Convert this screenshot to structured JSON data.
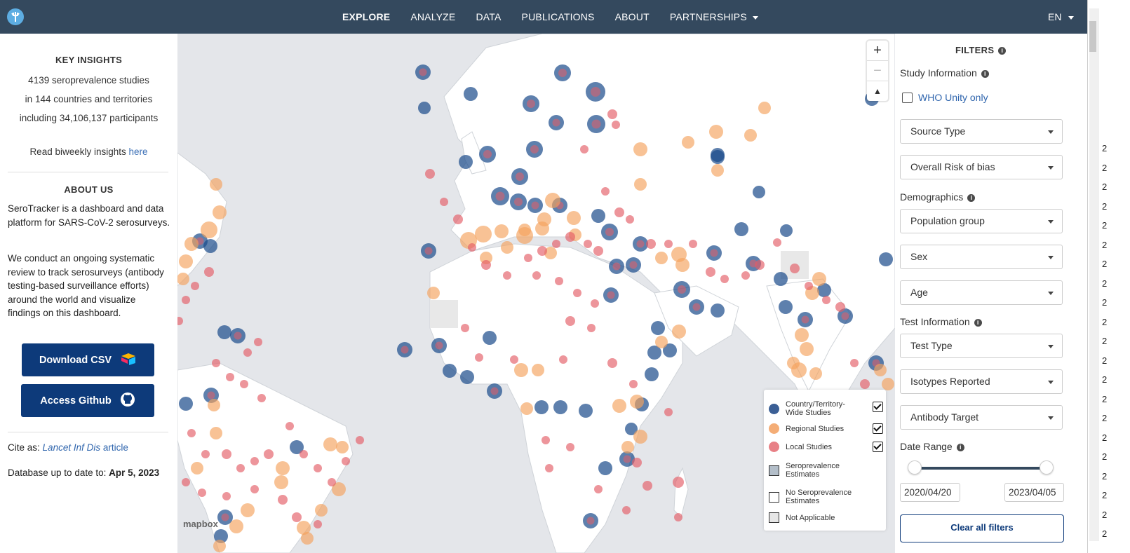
{
  "nav": {
    "items": [
      "EXPLORE",
      "ANALYZE",
      "DATA",
      "PUBLICATIONS",
      "ABOUT",
      "PARTNERSHIPS"
    ],
    "active": "EXPLORE",
    "language": "EN"
  },
  "insights": {
    "title": "KEY INSIGHTS",
    "studies_count": "4139",
    "studies_text": "seroprevalence studies",
    "countries_prefix": "in",
    "countries_count": "144",
    "countries_text": "countries and territories",
    "participants_prefix": "including",
    "participants_count": "34,106,137",
    "participants_text": "participants",
    "read_text": "Read biweekly insights",
    "read_link": "here"
  },
  "about": {
    "title": "ABOUT US",
    "p1": "SeroTracker is a dashboard and data platform for SARS-CoV-2 serosurveys.",
    "p2": "We conduct an ongoing systematic review to track serosurveys (antibody testing-based surveillance efforts) around the world and visualize findings on this dashboard.",
    "download_label": "Download CSV",
    "github_label": "Access Github",
    "cite_label": "Cite as:",
    "cite_link_italic": "Lancet Inf Dis",
    "cite_link_rest": "article",
    "db_label": "Database up to date to:",
    "db_date": "Apr 5, 2023"
  },
  "map": {
    "attribution": "mapbox",
    "zoom_in": "+",
    "zoom_out": "−",
    "compass": "▲",
    "colors": {
      "country": "#1a4a8a",
      "regional": "#f4a15c",
      "local": "#e35c66",
      "ocean": "#e4e6ea",
      "land": "#ffffff"
    },
    "legend": {
      "country": "Country/Territory-Wide Studies",
      "regional": "Regional Studies",
      "local": "Local Studies",
      "estimates": "Seroprevalence Estimates",
      "no_estimates": "No Seroprevalence Estimates",
      "not_applicable": "Not Applicable"
    }
  },
  "filters": {
    "title": "FILTERS",
    "study_info": "Study Information",
    "who_unity": "WHO Unity only",
    "source_type": "Source Type",
    "risk_of_bias": "Overall Risk of bias",
    "demographics": "Demographics",
    "population_group": "Population group",
    "sex": "Sex",
    "age": "Age",
    "test_info": "Test Information",
    "test_type": "Test Type",
    "isotypes": "Isotypes Reported",
    "antibody_target": "Antibody Target",
    "date_range": "Date Range",
    "date_start": "2020/04/20",
    "date_end": "2023/04/05",
    "clear": "Clear all filters"
  },
  "right_strip": {
    "digits": [
      "2",
      "2",
      "2",
      "2",
      "2",
      "2",
      "2",
      "2",
      "2",
      "2",
      "2",
      "2",
      "2",
      "2",
      "2",
      "2",
      "2",
      "2",
      "2",
      "2",
      "2"
    ]
  }
}
